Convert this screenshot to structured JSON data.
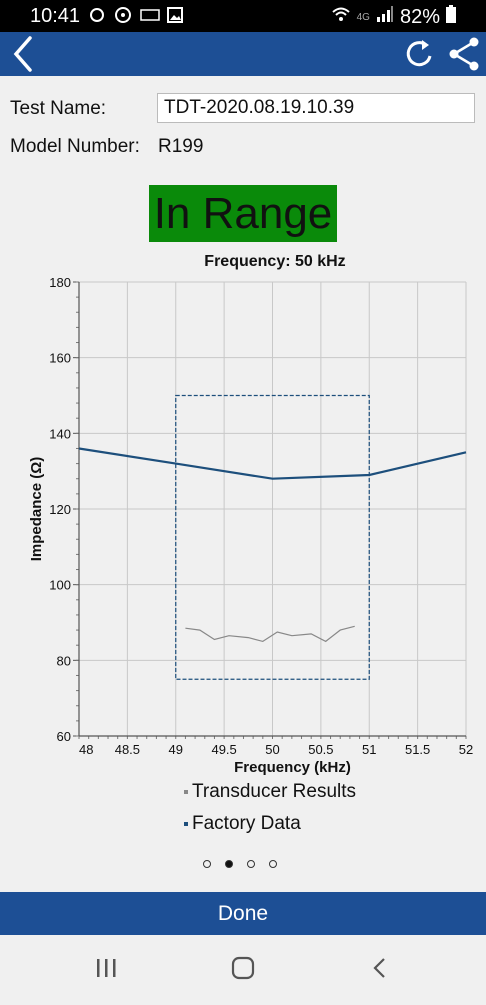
{
  "status": {
    "time": "10:41",
    "network": "4G",
    "battery": "82%"
  },
  "form": {
    "test_name_label": "Test Name:",
    "test_name_value": "TDT-2020.08.19.10.39",
    "model_number_label": "Model Number:",
    "model_number_value": "R199"
  },
  "result_badge": "In Range",
  "chart_data": {
    "type": "line",
    "title": "Frequency: 50 kHz",
    "xlabel": "Frequency (kHz)",
    "ylabel": "Impedance (Ω)",
    "xlim": [
      48,
      52
    ],
    "ylim": [
      60,
      180
    ],
    "x_ticks": [
      "48",
      "48.5",
      "49",
      "49.5",
      "50",
      "50.5",
      "51",
      "51.5",
      "52"
    ],
    "y_ticks": [
      "180",
      "160",
      "140",
      "120",
      "100",
      "80",
      "60"
    ],
    "series": [
      {
        "name": "Transducer Results",
        "color": "#888888",
        "x": [
          49.1,
          49.25,
          49.4,
          49.55,
          49.75,
          49.9,
          50.05,
          50.2,
          50.4,
          50.55,
          50.7,
          50.85
        ],
        "y": [
          88.5,
          88,
          85.5,
          86.5,
          86,
          85,
          87.5,
          86.5,
          87,
          85,
          88,
          89
        ]
      },
      {
        "name": "Factory Data",
        "color": "#1d4f7c",
        "x": [
          48,
          49,
          50,
          51,
          52
        ],
        "y": [
          136,
          132,
          128,
          129,
          135
        ]
      }
    ],
    "range_box": {
      "x": [
        49,
        51
      ],
      "y": [
        75,
        150
      ]
    }
  },
  "legend": [
    {
      "label": "Transducer Results",
      "color": "#888888"
    },
    {
      "label": "Factory Data",
      "color": "#1d4f7c"
    }
  ],
  "page_indicator": {
    "count": 4,
    "active": 1
  },
  "done_label": "Done",
  "icons": {
    "back": "back-arrow-icon",
    "refresh": "refresh-icon",
    "share": "share-icon"
  }
}
